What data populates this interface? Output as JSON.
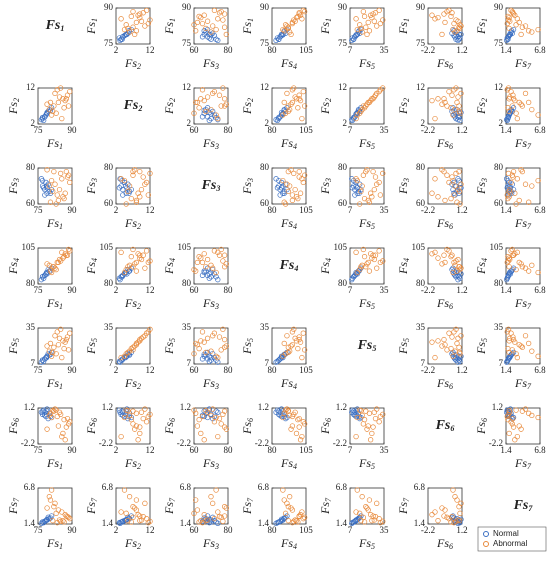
{
  "chart_data": {
    "type": "scatter_matrix",
    "variables": [
      {
        "symbol": "Fs",
        "index": "1",
        "lim": [
          75,
          90
        ],
        "ticks": [
          75,
          90
        ]
      },
      {
        "symbol": "Fs",
        "index": "2",
        "lim": [
          2,
          12
        ],
        "ticks": [
          2,
          12
        ]
      },
      {
        "symbol": "Fs",
        "index": "3",
        "lim": [
          60,
          80
        ],
        "ticks": [
          60,
          80
        ]
      },
      {
        "symbol": "Fs",
        "index": "4",
        "lim": [
          80,
          105
        ],
        "ticks": [
          80,
          105
        ]
      },
      {
        "symbol": "Fs",
        "index": "5",
        "lim": [
          7,
          35
        ],
        "ticks": [
          7,
          35
        ]
      },
      {
        "symbol": "Fs",
        "index": "6",
        "lim": [
          -2.2,
          1.2
        ],
        "ticks": [
          -2.2,
          1.2
        ]
      },
      {
        "symbol": "Fs",
        "index": "7",
        "lim": [
          1.4,
          6.8
        ],
        "ticks": [
          1.4,
          6.8
        ]
      }
    ],
    "series": [
      {
        "name": "Normal",
        "color": "#3b6fc2",
        "samples": [
          [
            78,
            4,
            68,
            86,
            11,
            0.8,
            1.8
          ],
          [
            77,
            3.5,
            70,
            85,
            10,
            0.6,
            1.7
          ],
          [
            79,
            5,
            66,
            88,
            13,
            0.9,
            2.0
          ],
          [
            78.5,
            4.5,
            72,
            87,
            12,
            0.4,
            1.9
          ],
          [
            77.5,
            3,
            69,
            84,
            9,
            1.0,
            1.6
          ],
          [
            80,
            6,
            67,
            89,
            14,
            0.7,
            2.2
          ],
          [
            79.5,
            5.5,
            71,
            90,
            15,
            0.2,
            2.4
          ],
          [
            78,
            4,
            65,
            86,
            11,
            0.5,
            1.8
          ],
          [
            77,
            3.8,
            73,
            85,
            10,
            0.9,
            1.7
          ],
          [
            81,
            6.5,
            68,
            91,
            16,
            0.3,
            2.6
          ],
          [
            78.8,
            4.8,
            70,
            88,
            12,
            0.6,
            2.0
          ],
          [
            76.5,
            3.2,
            74,
            83,
            8.5,
            0.8,
            1.5
          ],
          [
            79,
            5.2,
            69,
            87,
            13,
            1.1,
            2.1
          ],
          [
            80.5,
            5.8,
            66,
            89,
            14.5,
            0.4,
            2.3
          ]
        ]
      },
      {
        "name": "Abnormal",
        "color": "#e8893a",
        "samples": [
          [
            84,
            8,
            62,
            95,
            22,
            -0.5,
            3.5
          ],
          [
            88,
            10,
            75,
            100,
            28,
            0.2,
            2.5
          ],
          [
            82,
            7,
            78,
            92,
            20,
            0.9,
            4.0
          ],
          [
            86,
            9,
            64,
            98,
            25,
            -1.2,
            1.9
          ],
          [
            80,
            6,
            70,
            93,
            17,
            0.5,
            5.5
          ],
          [
            89,
            11,
            72,
            103,
            31,
            -0.1,
            2.2
          ],
          [
            83,
            5,
            60,
            90,
            15,
            1.0,
            3.0
          ],
          [
            85,
            12,
            77,
            96,
            34,
            0.6,
            1.8
          ],
          [
            87,
            8.5,
            66,
            101,
            24,
            -1.8,
            2.8
          ],
          [
            81,
            4.5,
            73,
            88,
            13,
            0.3,
            6.5
          ],
          [
            84.5,
            9.5,
            68,
            97,
            27,
            0.8,
            2.0
          ],
          [
            79,
            7.5,
            79,
            94,
            21,
            -0.8,
            3.8
          ],
          [
            86.5,
            6.5,
            63,
            99,
            19,
            0.1,
            1.7
          ],
          [
            82.5,
            10.5,
            71,
            91,
            29,
            1.1,
            4.5
          ],
          [
            88.5,
            7,
            76,
            104,
            18,
            -0.3,
            2.4
          ],
          [
            83.5,
            11.5,
            65,
            95,
            32,
            0.4,
            1.6
          ],
          [
            85.5,
            3.5,
            74,
            102,
            12,
            -1.5,
            3.2
          ],
          [
            80.5,
            8,
            61,
            89,
            23,
            0.7,
            5.0
          ],
          [
            87.5,
            9,
            78,
            100,
            26,
            -0.6,
            2.6
          ],
          [
            81.5,
            5.5,
            67,
            92,
            16,
            0.95,
            1.9
          ]
        ]
      }
    ],
    "legend": "lower right"
  }
}
